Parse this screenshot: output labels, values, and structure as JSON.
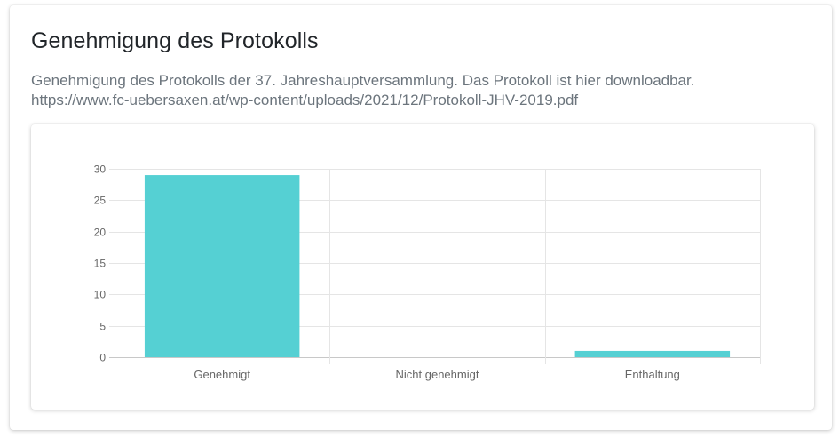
{
  "poll": {
    "title": "Genehmigung des Protokolls",
    "description_line1": "Genehmigung des Protokolls der 37. Jahreshauptversammlung. Das Protokoll ist hier downloadbar.",
    "description_line2": "https://www.fc-uebersaxen.at/wp-content/uploads/2021/12/Protokoll-JHV-2019.pdf"
  },
  "chart_data": {
    "type": "bar",
    "categories": [
      "Genehmigt",
      "Nicht genehmigt",
      "Enthaltung"
    ],
    "values": [
      29,
      0,
      1
    ],
    "title": "",
    "xlabel": "",
    "ylabel": "",
    "ylim": [
      0,
      30
    ],
    "yticks": [
      0,
      5,
      10,
      15,
      20,
      25,
      30
    ],
    "grid": true,
    "legend": "none",
    "bar_color": "#55d0d3",
    "grid_color": "#e5e5e5",
    "axis_color": "#c8c8c8"
  }
}
